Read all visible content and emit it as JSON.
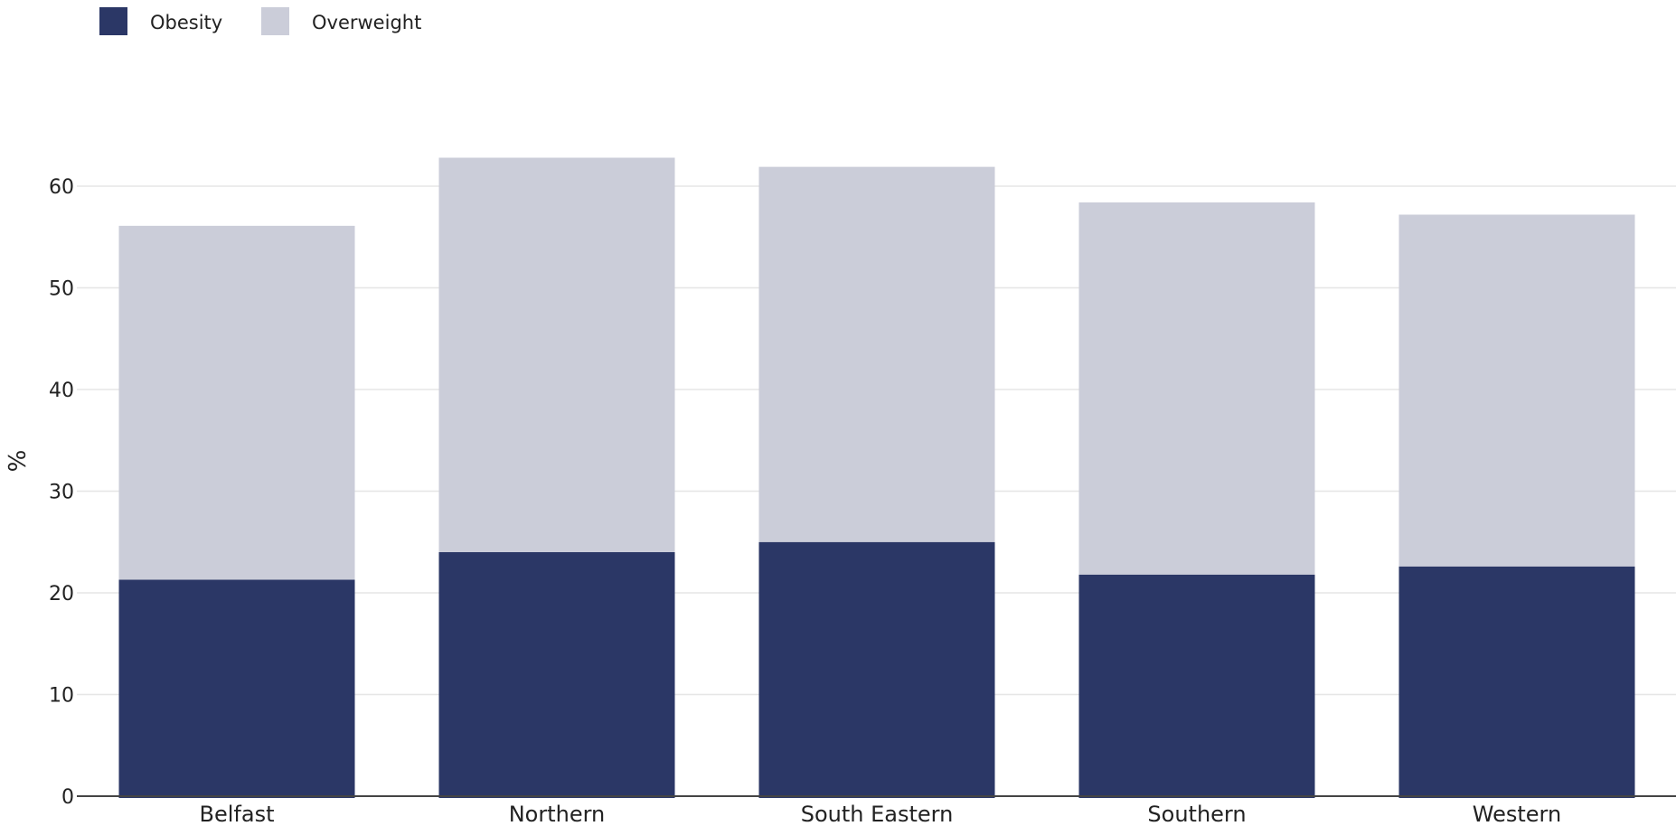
{
  "chart_data": {
    "type": "bar",
    "stacked": true,
    "categories": [
      "Belfast",
      "Northern",
      "South Eastern",
      "Southern",
      "Western"
    ],
    "series": [
      {
        "name": "Obesity",
        "color": "#2b3766",
        "values": [
          21.3,
          24.0,
          25.0,
          21.8,
          22.6
        ]
      },
      {
        "name": "Overweight",
        "color": "#cbcdd9",
        "values": [
          34.8,
          38.8,
          36.9,
          36.6,
          34.6
        ]
      }
    ],
    "ylabel": "%",
    "xlabel": "",
    "title": "",
    "ylim": [
      0,
      60
    ],
    "yticks": [
      0,
      10,
      20,
      30,
      40,
      50,
      60
    ],
    "grid": true,
    "legend_position": "top-left"
  }
}
